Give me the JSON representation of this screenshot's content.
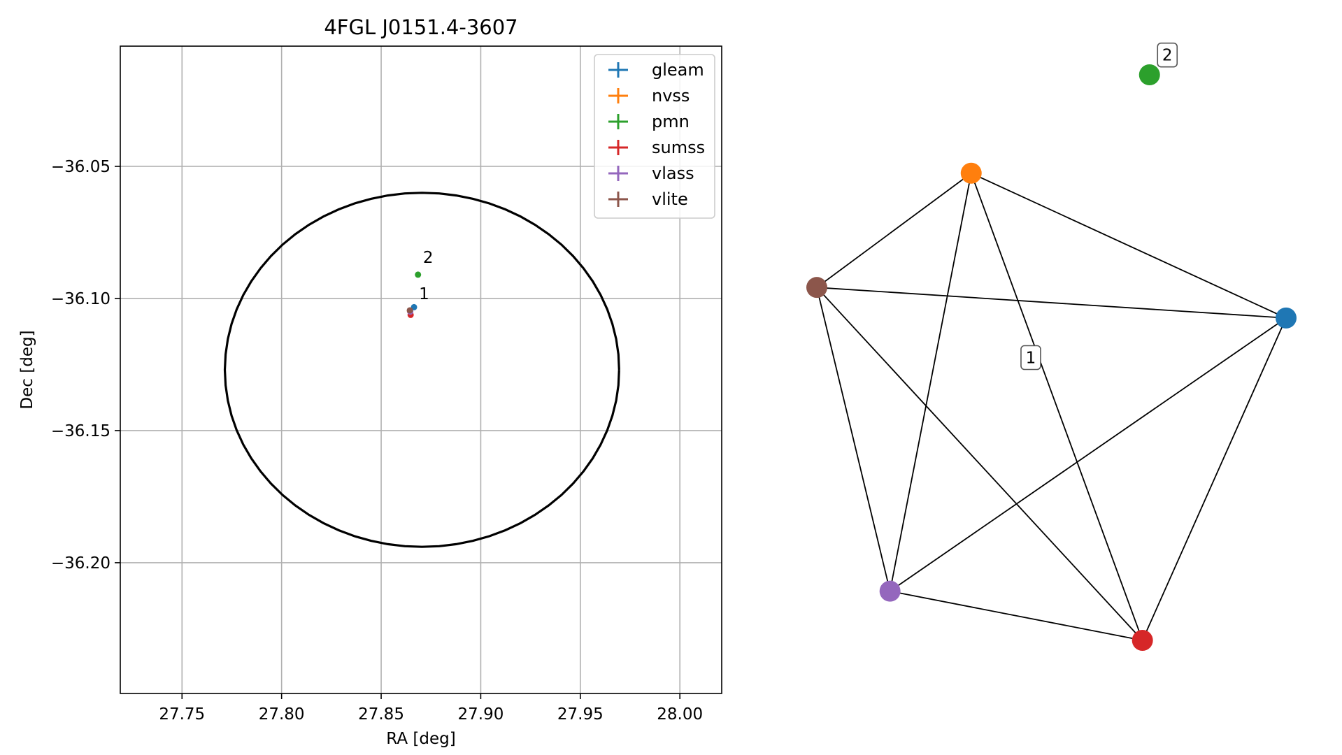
{
  "chart_data": [
    {
      "type": "scatter",
      "title": "4FGL J0151.4-3607",
      "xlabel": "RA [deg]",
      "ylabel": "Dec [deg]",
      "xlim": [
        27.719,
        28.021
      ],
      "ylim": [
        -36.2495,
        -36.0045
      ],
      "x_ticks": [
        27.75,
        27.8,
        27.85,
        27.9,
        27.95,
        28.0
      ],
      "x_tick_labels": [
        "27.75",
        "27.80",
        "27.85",
        "27.90",
        "27.95",
        "28.00"
      ],
      "y_ticks": [
        -36.05,
        -36.1,
        -36.15,
        -36.2
      ],
      "y_tick_labels": [
        "−36.05",
        "−36.10",
        "−36.15",
        "−36.20"
      ],
      "grid": true,
      "legend_position": "top-right",
      "series": [
        {
          "name": "gleam",
          "color": "#1f77b4",
          "points": [
            {
              "x": 27.8665,
              "y": -36.1033
            }
          ]
        },
        {
          "name": "nvss",
          "color": "#ff7f0e",
          "points": [
            {
              "x": 27.8645,
              "y": -36.1048
            }
          ]
        },
        {
          "name": "pmn",
          "color": "#2ca02c",
          "points": [
            {
              "x": 27.8685,
              "y": -36.091
            }
          ]
        },
        {
          "name": "sumss",
          "color": "#d62728",
          "points": [
            {
              "x": 27.8648,
              "y": -36.1062
            }
          ]
        },
        {
          "name": "vlass",
          "color": "#9467bd",
          "points": [
            {
              "x": 27.8646,
              "y": -36.105
            }
          ]
        },
        {
          "name": "vlite",
          "color": "#8c564b",
          "points": [
            {
              "x": 27.8644,
              "y": -36.1045
            }
          ]
        }
      ],
      "ellipse": {
        "center_x": 27.8705,
        "center_y": -36.127,
        "semi_x": 0.099,
        "semi_y": 0.067,
        "color": "#000000"
      },
      "annotations": [
        {
          "text": "2",
          "x": 27.871,
          "y": -36.0865
        },
        {
          "text": "1",
          "x": 27.869,
          "y": -36.1003
        }
      ]
    },
    {
      "type": "network",
      "nodes": [
        {
          "id": "gleam",
          "color": "#1f77b4",
          "x": 1.0,
          "y": 0.57
        },
        {
          "id": "nvss",
          "color": "#ff7f0e",
          "x": 0.329,
          "y": 0.826
        },
        {
          "id": "pmn",
          "color": "#2ca02c",
          "x": 0.709,
          "y": 1.0
        },
        {
          "id": "sumss",
          "color": "#d62728",
          "x": 0.694,
          "y": 0.0
        },
        {
          "id": "vlass",
          "color": "#9467bd",
          "x": 0.156,
          "y": 0.087
        },
        {
          "id": "vlite",
          "color": "#8c564b",
          "x": 0.0,
          "y": 0.624
        }
      ],
      "edges": [
        [
          "nvss",
          "gleam"
        ],
        [
          "nvss",
          "vlite"
        ],
        [
          "nvss",
          "vlass"
        ],
        [
          "nvss",
          "sumss"
        ],
        [
          "vlite",
          "gleam"
        ],
        [
          "vlite",
          "vlass"
        ],
        [
          "vlite",
          "sumss"
        ],
        [
          "gleam",
          "vlass"
        ],
        [
          "gleam",
          "sumss"
        ],
        [
          "vlass",
          "sumss"
        ]
      ],
      "group_labels": [
        {
          "text": "2",
          "x": 0.747,
          "y": 1.035
        },
        {
          "text": "1",
          "x": 0.456,
          "y": 0.5
        }
      ]
    }
  ]
}
